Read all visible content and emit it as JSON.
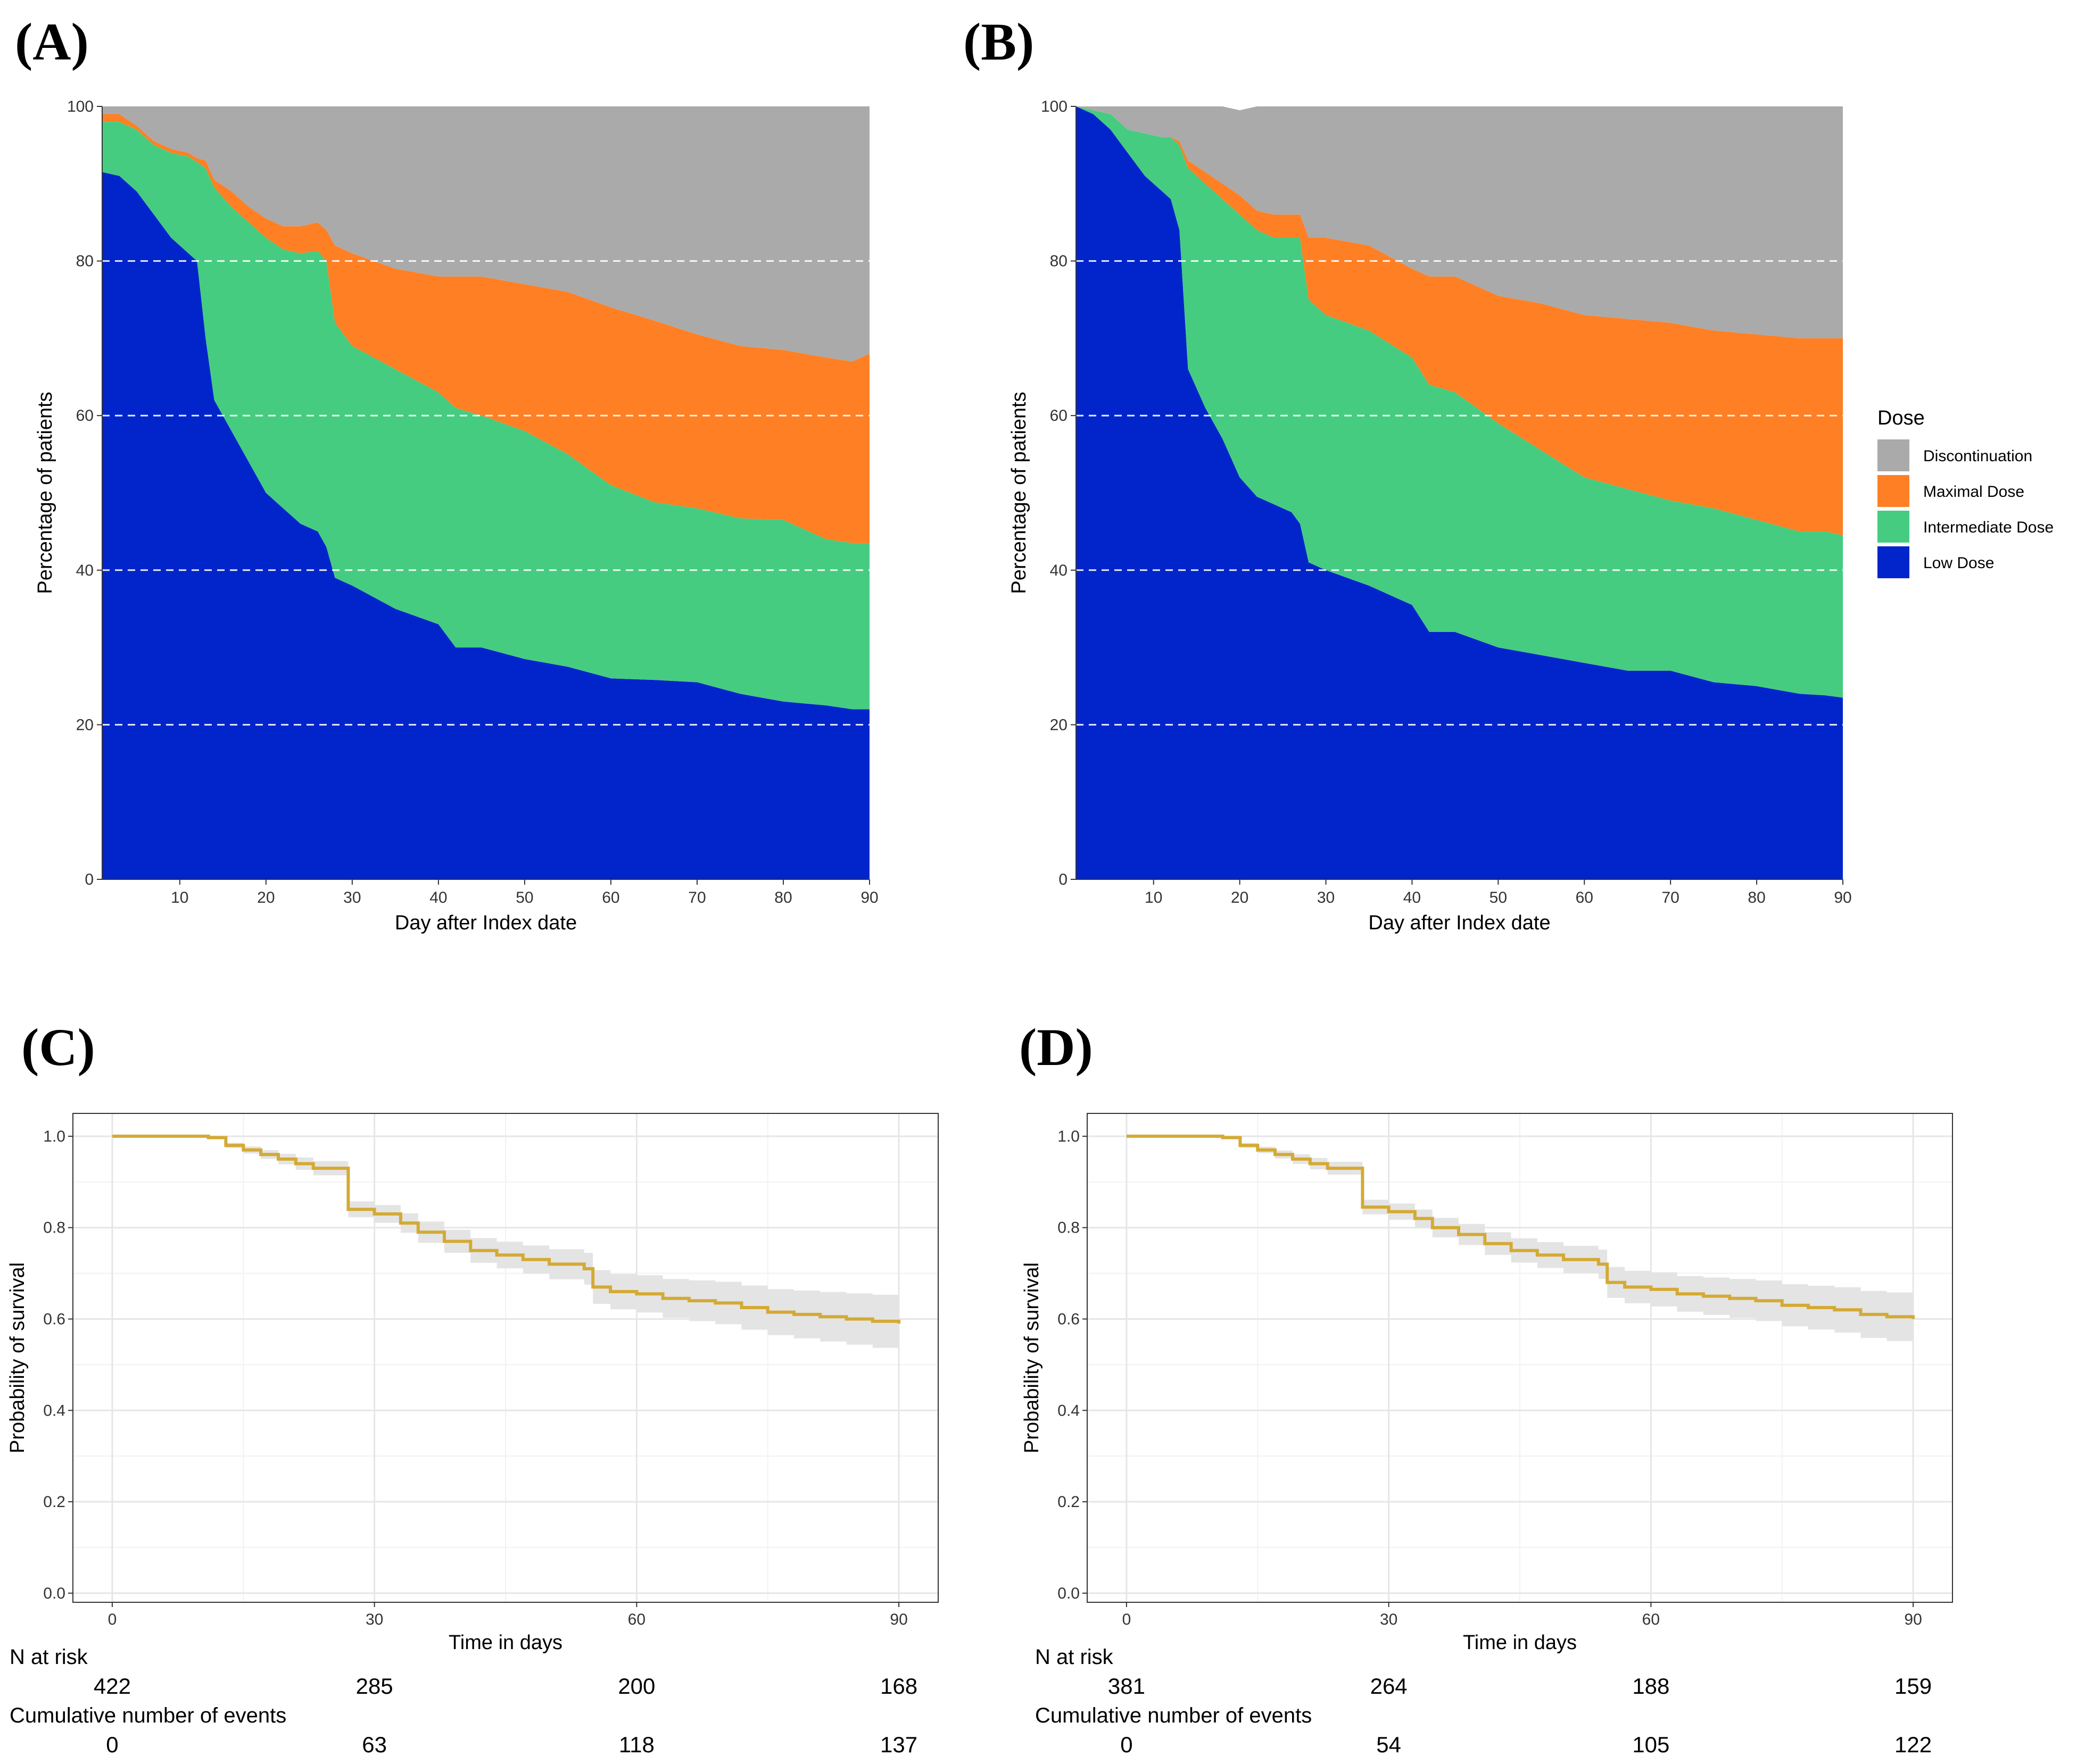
{
  "panel_labels": [
    "(A)",
    "(B)",
    "(C)",
    "(D)"
  ],
  "colors": {
    "discontinuation": "#AAAAAA",
    "maximal": "#FF8024",
    "intermediate": "#45CC80",
    "low": "#0125CB",
    "survival_line": "#D4AA34",
    "ci_band": "#E4E4E4"
  },
  "chart_data": [
    {
      "id": "A",
      "type": "area",
      "title": "(A)",
      "xlabel": "Day after Index date",
      "ylabel": "Percentage of patients",
      "xlim": [
        1,
        90
      ],
      "ylim": [
        0,
        100
      ],
      "xticks": [
        10,
        20,
        30,
        40,
        50,
        60,
        70,
        80,
        90
      ],
      "yticks": [
        0,
        20,
        40,
        60,
        80,
        100
      ],
      "grid": "dashed horizontal at 20, 40, 60, 80",
      "x": [
        1,
        3,
        5,
        7,
        9,
        11,
        12,
        13,
        14,
        16,
        18,
        20,
        22,
        24,
        26,
        27,
        28,
        30,
        35,
        40,
        42,
        45,
        50,
        55,
        60,
        65,
        70,
        75,
        80,
        85,
        88,
        90
      ],
      "series": [
        {
          "name": "Low Dose",
          "values": [
            91.5,
            91,
            89,
            86,
            83,
            81,
            80,
            70,
            62,
            58,
            54,
            50,
            48,
            46,
            45,
            43,
            39,
            38,
            35,
            33,
            30,
            30,
            28.5,
            27.5,
            26,
            25.8,
            25.5,
            24,
            23,
            22.5,
            22,
            22
          ]
        },
        {
          "name": "Intermediate Dose",
          "values": [
            6.5,
            7,
            8,
            9,
            11,
            12.5,
            12.8,
            22,
            27.5,
            29,
            31,
            33,
            33.5,
            35,
            36.3,
            37,
            33,
            31,
            31,
            30,
            31,
            30,
            29.5,
            27.5,
            25,
            23,
            22.5,
            22.7,
            23.5,
            21.5,
            21.5,
            21.5
          ]
        },
        {
          "name": "Maximal Dose",
          "values": [
            1,
            1,
            0.5,
            0.5,
            0.5,
            0.5,
            0.5,
            1,
            1,
            2,
            2,
            2.5,
            3,
            3.5,
            3.7,
            4,
            10,
            12,
            13,
            15,
            17,
            18,
            19,
            21,
            23,
            23.5,
            22.5,
            22.3,
            22,
            23.5,
            23.5,
            24.5
          ]
        },
        {
          "name": "Discontinuation",
          "values": [
            1,
            1,
            2.5,
            4.5,
            5.5,
            6,
            6.7,
            7,
            9.5,
            11,
            13,
            14.5,
            15.5,
            15.5,
            15,
            16,
            18,
            19,
            21,
            22,
            22,
            22,
            23,
            24,
            26,
            27.7,
            29.5,
            31,
            31.5,
            32.5,
            33,
            32
          ]
        }
      ]
    },
    {
      "id": "B",
      "type": "area",
      "title": "(B)",
      "xlabel": "Day after Index date",
      "ylabel": "Percentage of patients",
      "xlim": [
        1,
        90
      ],
      "ylim": [
        0,
        100
      ],
      "xticks": [
        10,
        20,
        30,
        40,
        50,
        60,
        70,
        80,
        90
      ],
      "yticks": [
        0,
        20,
        40,
        60,
        80,
        100
      ],
      "grid": "dashed horizontal at 20, 40, 60, 80",
      "x": [
        1,
        3,
        5,
        7,
        9,
        11,
        12,
        13,
        14,
        16,
        18,
        20,
        22,
        24,
        26,
        27,
        28,
        30,
        35,
        40,
        42,
        45,
        50,
        55,
        60,
        65,
        70,
        75,
        80,
        85,
        88,
        90
      ],
      "series": [
        {
          "name": "Low Dose",
          "values": [
            100,
            99,
            97,
            94,
            91,
            89,
            88,
            84,
            66,
            61,
            57,
            52,
            49.5,
            48.5,
            47.5,
            46,
            41,
            40,
            38,
            35.5,
            32,
            32,
            30,
            29,
            28,
            27,
            27,
            25.5,
            25,
            24,
            23.8,
            23.5
          ]
        },
        {
          "name": "Intermediate Dose",
          "values": [
            0,
            0.5,
            2,
            3,
            5.5,
            7,
            8,
            11,
            26,
            29,
            31,
            34,
            34.5,
            34.5,
            35.5,
            37,
            34,
            33,
            33,
            32,
            32,
            31,
            29,
            26.5,
            24,
            23.5,
            22,
            22.5,
            21.5,
            21,
            21.2,
            21
          ]
        },
        {
          "name": "Maximal Dose",
          "values": [
            0,
            0,
            0,
            0,
            0,
            0,
            0,
            0.5,
            1,
            1.5,
            2,
            2.5,
            2.5,
            3,
            3,
            3,
            8,
            10,
            11,
            11.5,
            14,
            15,
            16.5,
            19,
            21,
            22,
            23,
            23,
            24,
            25,
            25,
            25.5
          ]
        },
        {
          "name": "Discontinuation",
          "values": [
            0,
            0.5,
            1,
            3,
            3.5,
            4,
            4,
            4.5,
            7,
            8.5,
            10,
            11,
            13.5,
            14,
            14,
            14,
            17,
            17,
            18,
            21,
            22,
            22,
            24.5,
            25.5,
            27,
            27.5,
            28,
            29,
            29.5,
            30,
            30,
            30
          ]
        }
      ],
      "legend": {
        "title": "Dose",
        "entries": [
          "Discontinuation",
          "Maximal Dose",
          "Intermediate Dose",
          "Low Dose"
        ],
        "position": "right"
      }
    },
    {
      "id": "C",
      "type": "line",
      "title": "(C)",
      "xlabel": "Time in days",
      "ylabel": "Probability of survival",
      "xlim": [
        -4.5,
        94.5
      ],
      "ylim": [
        -0.02,
        1.05
      ],
      "xticks": [
        0,
        30,
        60,
        90
      ],
      "yticks": [
        0.0,
        0.2,
        0.4,
        0.6,
        0.8,
        1.0
      ],
      "grid": "major and minor",
      "x": [
        0,
        8,
        11,
        13,
        15,
        17,
        19,
        21,
        23,
        27,
        30,
        33,
        35,
        38,
        41,
        44,
        47,
        50,
        54,
        55,
        57,
        60,
        63,
        66,
        69,
        72,
        75,
        78,
        81,
        84,
        87,
        90
      ],
      "y": [
        1.0,
        1.0,
        0.997,
        0.98,
        0.97,
        0.96,
        0.95,
        0.94,
        0.93,
        0.84,
        0.83,
        0.81,
        0.79,
        0.77,
        0.75,
        0.74,
        0.73,
        0.72,
        0.71,
        0.67,
        0.66,
        0.655,
        0.645,
        0.64,
        0.635,
        0.625,
        0.615,
        0.61,
        0.605,
        0.6,
        0.595,
        0.59
      ],
      "ci_halfwidth_start": 0.0,
      "ci_halfwidth_end": 0.06,
      "risk_table": {
        "n_at_risk_label": "N at risk",
        "n_at_risk": [
          "422",
          "285",
          "200",
          "168"
        ],
        "events_label": "Cumulative number of events",
        "events": [
          "0",
          "63",
          "118",
          "137"
        ],
        "times": [
          0,
          30,
          60,
          90
        ]
      }
    },
    {
      "id": "D",
      "type": "line",
      "title": "(D)",
      "xlabel": "Time in days",
      "ylabel": "Probability of survival",
      "xlim": [
        -4.5,
        94.5
      ],
      "ylim": [
        -0.02,
        1.05
      ],
      "xticks": [
        0,
        30,
        60,
        90
      ],
      "yticks": [
        0.0,
        0.2,
        0.4,
        0.6,
        0.8,
        1.0
      ],
      "grid": "major and minor",
      "x": [
        0,
        8,
        11,
        13,
        15,
        17,
        19,
        21,
        23,
        27,
        30,
        33,
        35,
        38,
        41,
        44,
        47,
        50,
        54,
        55,
        57,
        60,
        63,
        66,
        69,
        72,
        75,
        78,
        81,
        84,
        87,
        90
      ],
      "y": [
        1.0,
        1.0,
        0.997,
        0.98,
        0.97,
        0.96,
        0.95,
        0.94,
        0.93,
        0.845,
        0.835,
        0.82,
        0.8,
        0.785,
        0.765,
        0.75,
        0.74,
        0.73,
        0.72,
        0.68,
        0.67,
        0.665,
        0.655,
        0.65,
        0.645,
        0.64,
        0.63,
        0.625,
        0.62,
        0.61,
        0.605,
        0.6
      ],
      "ci_halfwidth_start": 0.0,
      "ci_halfwidth_end": 0.055,
      "risk_table": {
        "n_at_risk_label": "N at risk",
        "n_at_risk": [
          "381",
          "264",
          "188",
          "159"
        ],
        "events_label": "Cumulative number of events",
        "events": [
          "0",
          "54",
          "105",
          "122"
        ],
        "times": [
          0,
          30,
          60,
          90
        ]
      }
    }
  ]
}
